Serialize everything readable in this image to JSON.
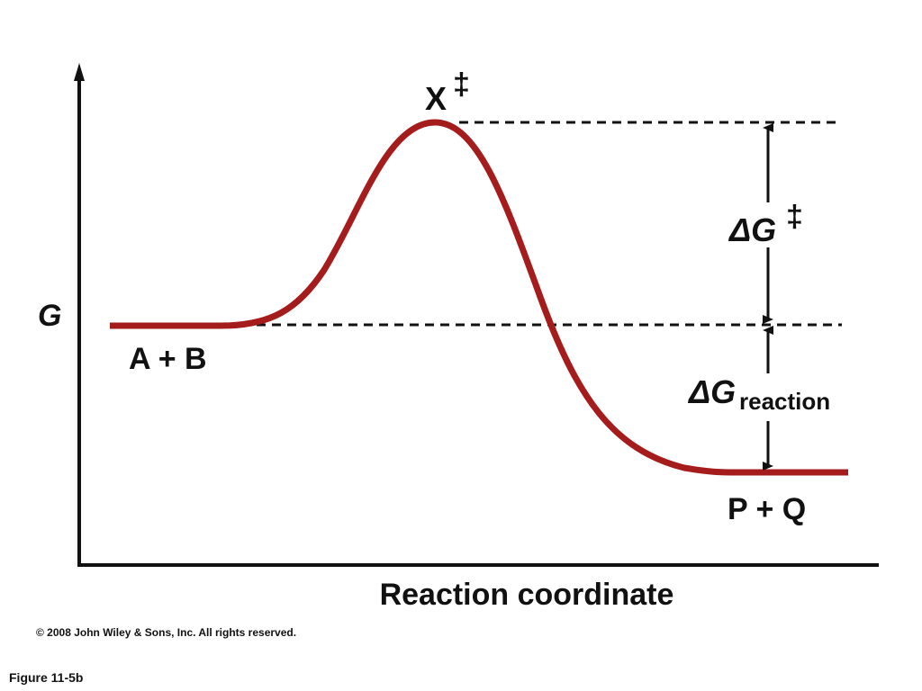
{
  "axes": {
    "y_label": "G",
    "x_label": "Reaction coordinate"
  },
  "labels": {
    "reactants": "A + B",
    "products": "P + Q",
    "transition_state": {
      "main": "X",
      "sup": "‡"
    },
    "activation_energy": {
      "main": "ΔG",
      "sup": "‡"
    },
    "reaction_energy": {
      "main": "ΔG",
      "sub": "reaction"
    }
  },
  "footer": {
    "copyright": "© 2008 John Wiley & Sons, Inc. All rights reserved.",
    "figure": "Figure 11-5b"
  }
}
